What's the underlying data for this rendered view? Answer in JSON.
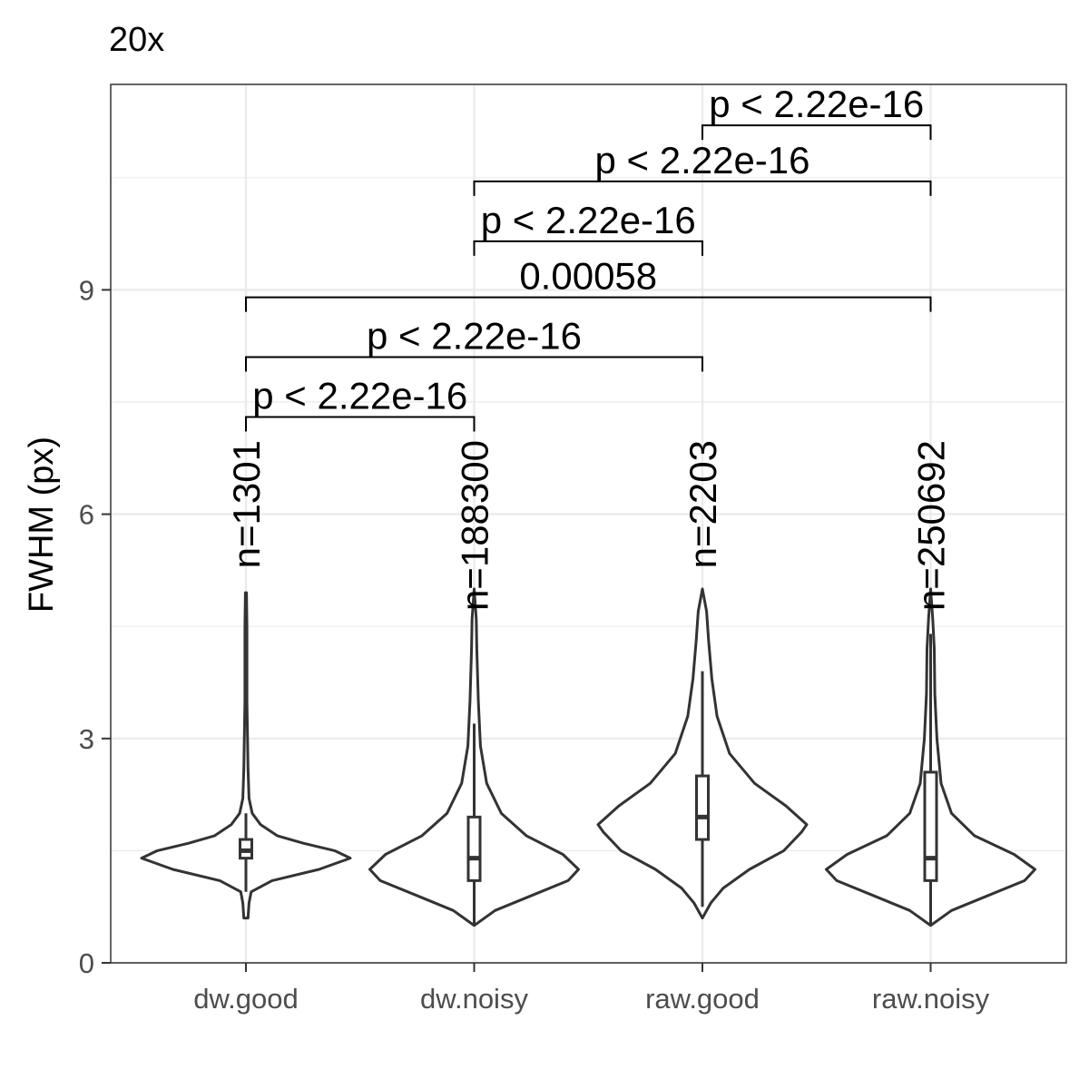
{
  "chart_data": {
    "type": "violin",
    "title": "20x",
    "xlabel": "",
    "ylabel": "FWHM (px)",
    "ylim": [
      0,
      11.85
    ],
    "yticks": [
      0,
      3,
      6,
      9
    ],
    "grid": true,
    "categories": [
      "dw.good",
      "dw.noisy",
      "raw.good",
      "raw.noisy"
    ],
    "groups": [
      {
        "name": "dw.good",
        "n_label": "n=1301",
        "min": 0.6,
        "max": 4.95,
        "box": {
          "q1": 1.4,
          "median": 1.5,
          "q3": 1.65,
          "whisker_low": 0.95,
          "whisker_high": 2.0
        },
        "density": [
          [
            0.6,
            0.02
          ],
          [
            0.8,
            0.03
          ],
          [
            0.95,
            0.05
          ],
          [
            1.1,
            0.25
          ],
          [
            1.25,
            0.7
          ],
          [
            1.4,
            1.0
          ],
          [
            1.5,
            0.85
          ],
          [
            1.6,
            0.55
          ],
          [
            1.7,
            0.3
          ],
          [
            1.85,
            0.14
          ],
          [
            2.0,
            0.06
          ],
          [
            2.2,
            0.03
          ],
          [
            2.6,
            0.02
          ],
          [
            3.5,
            0.01
          ],
          [
            4.5,
            0.01
          ],
          [
            4.95,
            0.005
          ]
        ]
      },
      {
        "name": "dw.noisy",
        "n_label": "n=188300",
        "min": 0.5,
        "max": 5.0,
        "box": {
          "q1": 1.1,
          "median": 1.4,
          "q3": 1.95,
          "whisker_low": 0.5,
          "whisker_high": 3.2
        },
        "density": [
          [
            0.5,
            0.0
          ],
          [
            0.7,
            0.2
          ],
          [
            0.9,
            0.55
          ],
          [
            1.1,
            0.9
          ],
          [
            1.25,
            1.0
          ],
          [
            1.45,
            0.85
          ],
          [
            1.7,
            0.5
          ],
          [
            2.0,
            0.26
          ],
          [
            2.4,
            0.12
          ],
          [
            2.9,
            0.06
          ],
          [
            3.5,
            0.04
          ],
          [
            4.2,
            0.025
          ],
          [
            4.6,
            0.02
          ],
          [
            5.0,
            0.0
          ]
        ]
      },
      {
        "name": "raw.good",
        "n_label": "n=2203",
        "min": 0.6,
        "max": 5.0,
        "box": {
          "q1": 1.65,
          "median": 1.95,
          "q3": 2.5,
          "whisker_low": 0.75,
          "whisker_high": 3.9
        },
        "density": [
          [
            0.6,
            0.0
          ],
          [
            0.8,
            0.08
          ],
          [
            1.0,
            0.2
          ],
          [
            1.25,
            0.45
          ],
          [
            1.5,
            0.78
          ],
          [
            1.75,
            0.95
          ],
          [
            1.85,
            1.0
          ],
          [
            2.1,
            0.8
          ],
          [
            2.4,
            0.5
          ],
          [
            2.8,
            0.26
          ],
          [
            3.3,
            0.14
          ],
          [
            3.8,
            0.09
          ],
          [
            4.3,
            0.06
          ],
          [
            4.7,
            0.04
          ],
          [
            5.0,
            0.0
          ]
        ]
      },
      {
        "name": "raw.noisy",
        "n_label": "n=250692",
        "min": 0.5,
        "max": 5.0,
        "box": {
          "q1": 1.1,
          "median": 1.4,
          "q3": 2.55,
          "whisker_low": 0.5,
          "whisker_high": 4.4
        },
        "density": [
          [
            0.5,
            0.0
          ],
          [
            0.7,
            0.2
          ],
          [
            0.9,
            0.55
          ],
          [
            1.1,
            0.9
          ],
          [
            1.25,
            1.0
          ],
          [
            1.45,
            0.8
          ],
          [
            1.7,
            0.42
          ],
          [
            2.0,
            0.2
          ],
          [
            2.4,
            0.1
          ],
          [
            3.0,
            0.06
          ],
          [
            3.6,
            0.04
          ],
          [
            4.2,
            0.035
          ],
          [
            4.6,
            0.02
          ],
          [
            5.0,
            0.0
          ]
        ]
      }
    ],
    "comparisons": [
      {
        "from": "dw.good",
        "to": "dw.noisy",
        "y": 7.3,
        "label": "p < 2.22e-16"
      },
      {
        "from": "dw.good",
        "to": "raw.good",
        "y": 8.1,
        "label": "p < 2.22e-16"
      },
      {
        "from": "dw.good",
        "to": "raw.noisy",
        "y": 8.9,
        "label": "0.00058"
      },
      {
        "from": "dw.noisy",
        "to": "raw.good",
        "y": 9.65,
        "label": "p < 2.22e-16"
      },
      {
        "from": "dw.noisy",
        "to": "raw.noisy",
        "y": 10.45,
        "label": "p < 2.22e-16"
      },
      {
        "from": "raw.good",
        "to": "raw.noisy",
        "y": 11.2,
        "label": "p < 2.22e-16"
      }
    ]
  }
}
